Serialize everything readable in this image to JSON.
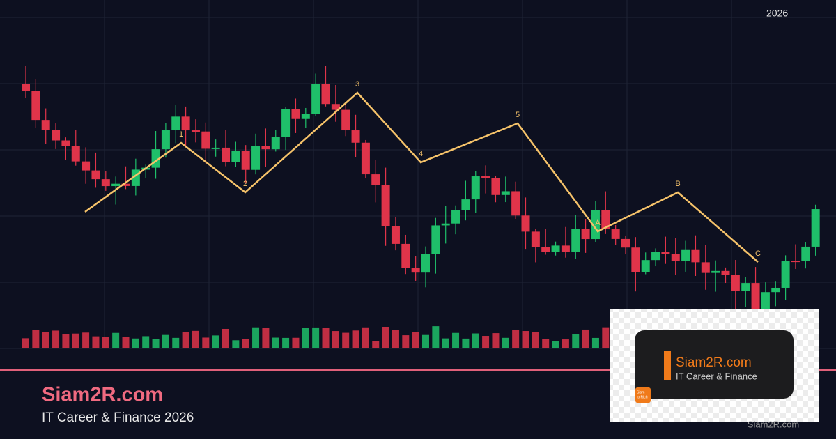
{
  "header_year": "2026",
  "wave_labels": [
    "1",
    "2",
    "3",
    "4",
    "5",
    "A",
    "B",
    "C"
  ],
  "brand": {
    "title": "Siam2R.com",
    "subtitle": "IT Career & Finance 2026"
  },
  "logo_card": {
    "title": "Siam2R.com",
    "subtitle": "IT Career & Finance",
    "badge_top": "Siam",
    "badge_bottom": "to Rich"
  },
  "watermark": "Siam2R.com"
}
